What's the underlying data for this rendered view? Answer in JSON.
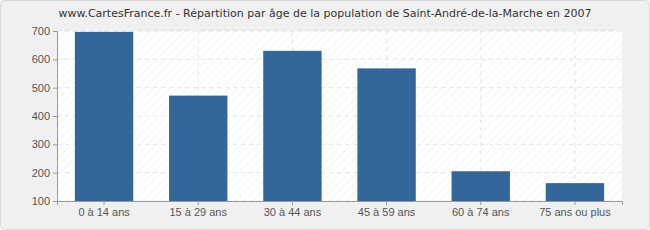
{
  "chart_data": {
    "type": "bar",
    "title": "www.CartesFrance.fr - Répartition par âge de la population de Saint-André-de-la-Marche en 2007",
    "categories": [
      "0 à 14 ans",
      "15 à 29 ans",
      "30 à 44 ans",
      "45 à 59 ans",
      "60 à 74 ans",
      "75 ans ou plus"
    ],
    "values": [
      697,
      472,
      630,
      568,
      205,
      163
    ],
    "color": "#336699",
    "ylim": [
      100,
      700
    ],
    "yticks": [
      100,
      200,
      300,
      400,
      500,
      600,
      700
    ],
    "grid": true
  }
}
